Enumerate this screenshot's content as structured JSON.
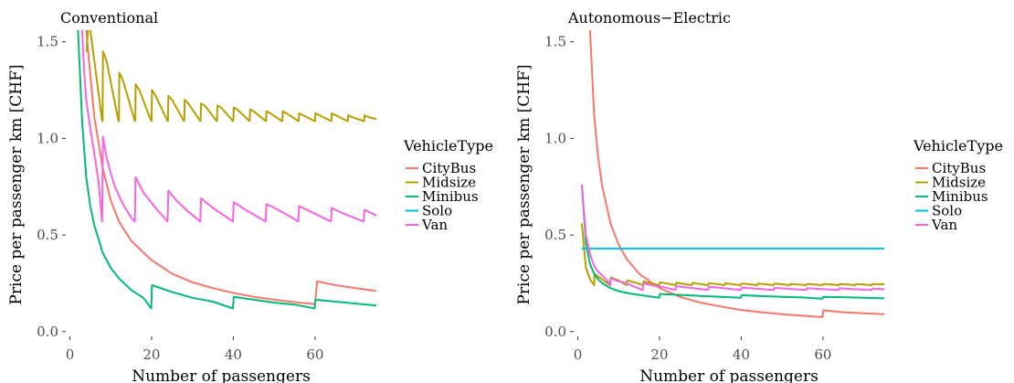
{
  "colors": {
    "CityBus": "#F8766D",
    "Midsize": "#B79F00",
    "Minibus": "#00BA76",
    "Solo": "#00BFEA",
    "Van": "#F564E3"
  },
  "chart_data": [
    {
      "type": "line",
      "title": "Conventional",
      "xlabel": "Number of passengers",
      "ylabel": "Price per passenger km [CHF]",
      "xlim": [
        -1,
        75
      ],
      "ylim": [
        -0.02,
        1.56
      ],
      "x_ticks": [
        0,
        20,
        40,
        60
      ],
      "y_ticks": [
        0.0,
        0.5,
        1.0,
        1.5
      ],
      "y_tick_labels": [
        "0.0",
        "0.5",
        "1.0",
        "1.5"
      ],
      "legend": {
        "title": "VehicleType",
        "entries": [
          "CityBus",
          "Midsize",
          "Minibus",
          "Solo",
          "Van"
        ],
        "position": "right"
      },
      "series": [
        {
          "name": "CityBus",
          "x": [
            4,
            5,
            6,
            8,
            10,
            12,
            15,
            20,
            25,
            30,
            35,
            40,
            45,
            50,
            55,
            60,
            60.5,
            65,
            70,
            75
          ],
          "y": [
            1.56,
            1.33,
            1.11,
            0.85,
            0.68,
            0.57,
            0.47,
            0.37,
            0.3,
            0.255,
            0.225,
            0.2,
            0.18,
            0.165,
            0.152,
            0.142,
            0.26,
            0.24,
            0.225,
            0.21
          ]
        },
        {
          "name": "Midsize",
          "x": [
            4,
            4.1,
            4.5,
            5,
            6,
            7.9,
            8,
            8.1,
            9,
            11.9,
            12,
            12.1,
            13,
            15.9,
            16,
            16.1,
            17,
            19.9,
            20,
            20.1,
            21,
            23.9,
            24,
            24.1,
            25,
            27.9,
            28,
            28.1,
            29,
            31.9,
            32,
            32.1,
            33,
            35.9,
            36,
            36.1,
            37,
            39.9,
            40,
            40.1,
            41,
            43.9,
            44,
            44.1,
            45,
            47.9,
            48,
            48.1,
            49,
            51.9,
            52,
            52.1,
            53,
            55.9,
            56,
            56.1,
            57,
            59.9,
            60,
            60.1,
            61,
            63.9,
            64,
            64.1,
            65,
            67.9,
            68,
            68.1,
            69,
            71.9,
            72,
            72.1,
            73,
            75
          ],
          "y": [
            1.45,
            1.45,
            1.58,
            1.56,
            1.4,
            1.09,
            1.09,
            1.45,
            1.4,
            1.09,
            1.09,
            1.34,
            1.3,
            1.09,
            1.09,
            1.28,
            1.25,
            1.09,
            1.09,
            1.25,
            1.22,
            1.09,
            1.09,
            1.22,
            1.2,
            1.09,
            1.09,
            1.2,
            1.18,
            1.09,
            1.09,
            1.18,
            1.17,
            1.09,
            1.09,
            1.17,
            1.16,
            1.09,
            1.09,
            1.16,
            1.15,
            1.09,
            1.09,
            1.15,
            1.14,
            1.09,
            1.09,
            1.14,
            1.13,
            1.09,
            1.09,
            1.14,
            1.13,
            1.09,
            1.09,
            1.13,
            1.12,
            1.09,
            1.09,
            1.13,
            1.12,
            1.09,
            1.09,
            1.13,
            1.12,
            1.09,
            1.09,
            1.12,
            1.11,
            1.09,
            1.09,
            1.12,
            1.11,
            1.1
          ]
        },
        {
          "name": "Minibus",
          "x": [
            2,
            2.5,
            3,
            4,
            5,
            6,
            8,
            10,
            12,
            15,
            18,
            19.9,
            20.1,
            25,
            30,
            35,
            39.9,
            40.1,
            45,
            50,
            55,
            59.9,
            60.1,
            65,
            70,
            75
          ],
          "y": [
            1.56,
            1.32,
            1.09,
            0.8,
            0.65,
            0.55,
            0.41,
            0.33,
            0.275,
            0.215,
            0.175,
            0.12,
            0.24,
            0.205,
            0.175,
            0.155,
            0.12,
            0.18,
            0.165,
            0.15,
            0.14,
            0.12,
            0.165,
            0.155,
            0.145,
            0.135
          ]
        },
        {
          "name": "Van",
          "x": [
            3,
            3.5,
            4,
            5,
            6,
            7,
            7.9,
            8.1,
            9,
            10,
            11,
            13,
            15,
            15.9,
            16.1,
            18,
            21,
            23.9,
            24.1,
            26,
            29,
            31.9,
            32.1,
            35,
            39.9,
            40.1,
            43,
            47.9,
            48.1,
            51,
            55.9,
            56.1,
            59,
            63.9,
            64.1,
            67,
            71.9,
            72.1,
            75
          ],
          "y": [
            1.56,
            1.35,
            1.2,
            1.05,
            0.92,
            0.78,
            0.57,
            1.01,
            0.9,
            0.82,
            0.75,
            0.66,
            0.59,
            0.57,
            0.8,
            0.72,
            0.64,
            0.57,
            0.73,
            0.68,
            0.62,
            0.57,
            0.69,
            0.64,
            0.57,
            0.67,
            0.63,
            0.57,
            0.66,
            0.63,
            0.57,
            0.65,
            0.62,
            0.57,
            0.64,
            0.61,
            0.57,
            0.63,
            0.6
          ]
        }
      ]
    },
    {
      "type": "line",
      "title": "Autonomous−Electric",
      "xlabel": "Number of passengers",
      "ylabel": "Price per passenger km [CHF]",
      "xlim": [
        -1,
        75
      ],
      "ylim": [
        -0.02,
        1.56
      ],
      "x_ticks": [
        0,
        20,
        40,
        60
      ],
      "y_ticks": [
        0.0,
        0.5,
        1.0,
        1.5
      ],
      "y_tick_labels": [
        "0.0",
        "0.5",
        "1.0",
        "1.5"
      ],
      "legend": {
        "title": "VehicleType",
        "entries": [
          "CityBus",
          "Midsize",
          "Minibus",
          "Solo",
          "Van"
        ],
        "position": "right"
      },
      "series": [
        {
          "name": "CityBus",
          "x": [
            3,
            4,
            5,
            6,
            8,
            10,
            12,
            15,
            20,
            25,
            30,
            35,
            40,
            45,
            50,
            55,
            59.9,
            60.1,
            65,
            70,
            75
          ],
          "y": [
            1.56,
            1.12,
            0.9,
            0.75,
            0.56,
            0.45,
            0.375,
            0.3,
            0.225,
            0.18,
            0.15,
            0.13,
            0.112,
            0.1,
            0.09,
            0.082,
            0.075,
            0.11,
            0.1,
            0.095,
            0.09
          ]
        },
        {
          "name": "Midsize",
          "x": [
            1,
            2,
            3,
            4,
            4.1,
            5,
            6,
            7.9,
            8.1,
            10,
            11.9,
            12.1,
            14,
            15.9,
            16.1,
            18,
            19.9,
            20.1,
            22,
            23.9,
            24.1,
            26,
            27.9,
            28.1,
            30,
            31.9,
            32.1,
            34,
            35.9,
            36.1,
            38,
            39.9,
            40.1,
            42,
            43.9,
            44.1,
            46,
            47.9,
            48.1,
            50,
            51.9,
            52.1,
            54,
            55.9,
            56.1,
            58,
            59.9,
            60.1,
            62,
            63.9,
            64.1,
            66,
            67.9,
            68.1,
            70,
            71.9,
            72.1,
            75
          ],
          "y": [
            0.56,
            0.33,
            0.27,
            0.24,
            0.3,
            0.285,
            0.27,
            0.24,
            0.28,
            0.265,
            0.24,
            0.265,
            0.255,
            0.24,
            0.26,
            0.25,
            0.24,
            0.255,
            0.248,
            0.24,
            0.253,
            0.247,
            0.24,
            0.252,
            0.246,
            0.24,
            0.25,
            0.246,
            0.24,
            0.25,
            0.245,
            0.24,
            0.249,
            0.245,
            0.24,
            0.248,
            0.245,
            0.24,
            0.248,
            0.245,
            0.24,
            0.247,
            0.244,
            0.24,
            0.247,
            0.244,
            0.24,
            0.247,
            0.244,
            0.24,
            0.246,
            0.244,
            0.24,
            0.246,
            0.244,
            0.24,
            0.246,
            0.245
          ]
        },
        {
          "name": "Minibus",
          "x": [
            1,
            2,
            3,
            4,
            5,
            6,
            8,
            10,
            12,
            15,
            19.9,
            20.1,
            25,
            30,
            35,
            39.9,
            40.1,
            45,
            50,
            55,
            59.9,
            60.1,
            65,
            70,
            75
          ],
          "y": [
            0.76,
            0.46,
            0.35,
            0.3,
            0.27,
            0.25,
            0.225,
            0.21,
            0.2,
            0.19,
            0.175,
            0.195,
            0.19,
            0.185,
            0.18,
            0.175,
            0.188,
            0.184,
            0.18,
            0.177,
            0.17,
            0.18,
            0.178,
            0.175,
            0.172
          ]
        },
        {
          "name": "Solo",
          "x": [
            1,
            75
          ],
          "y": [
            0.43,
            0.43
          ]
        },
        {
          "name": "Van",
          "x": [
            1,
            2,
            3,
            4,
            5,
            6,
            7,
            7.9,
            8.1,
            10,
            12,
            13,
            15.9,
            16.1,
            18,
            21,
            23.9,
            24.1,
            27,
            31.9,
            32.1,
            35,
            39.9,
            40.1,
            43,
            47.9,
            48.1,
            51,
            55.9,
            56.1,
            59,
            63.9,
            64.1,
            67,
            71.9,
            72.1,
            75
          ],
          "y": [
            0.76,
            0.5,
            0.4,
            0.34,
            0.31,
            0.29,
            0.27,
            0.24,
            0.275,
            0.26,
            0.25,
            0.24,
            0.215,
            0.25,
            0.24,
            0.23,
            0.215,
            0.235,
            0.228,
            0.215,
            0.232,
            0.226,
            0.215,
            0.228,
            0.223,
            0.215,
            0.226,
            0.222,
            0.215,
            0.225,
            0.221,
            0.215,
            0.224,
            0.22,
            0.215,
            0.222,
            0.219
          ]
        }
      ]
    }
  ]
}
